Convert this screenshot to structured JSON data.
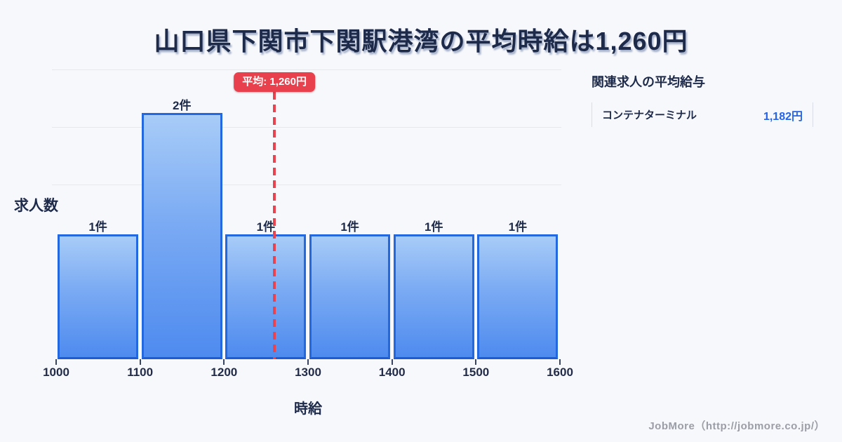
{
  "page": {
    "title": "山口県下関市下関駅港湾の平均時給は1,260円"
  },
  "chart_data": {
    "type": "bar",
    "title": "山口県下関市下関駅港湾の平均時給は1,260円",
    "xlabel": "時給",
    "ylabel": "求人数",
    "x_ticks": [
      "1000",
      "1100",
      "1200",
      "1300",
      "1400",
      "1500",
      "1600"
    ],
    "xlim": [
      1000,
      1600
    ],
    "ylim": [
      0,
      2.3
    ],
    "grid": true,
    "bins": [
      {
        "range": [
          1000,
          1100
        ],
        "count": 1,
        "label": "1件"
      },
      {
        "range": [
          1100,
          1200
        ],
        "count": 2,
        "label": "2件"
      },
      {
        "range": [
          1200,
          1300
        ],
        "count": 1,
        "label": "1件"
      },
      {
        "range": [
          1300,
          1400
        ],
        "count": 1,
        "label": "1件"
      },
      {
        "range": [
          1400,
          1500
        ],
        "count": 1,
        "label": "1件"
      },
      {
        "range": [
          1500,
          1600
        ],
        "count": 1,
        "label": "1件"
      }
    ],
    "average_line": {
      "value": 1260,
      "label": "平均: 1,260円"
    }
  },
  "panel": {
    "heading": "関連求人の平均給与",
    "items": [
      {
        "label": "コンテナターミナル",
        "value": "1,182円"
      }
    ]
  },
  "footer": {
    "credit": "JobMore（http://jobmore.co.jp/）"
  },
  "colors": {
    "background": "#f7f8fb",
    "title_text": "#1d2a4a",
    "bar_fill_top": "#a8ccf8",
    "bar_fill_bottom": "#4e8bef",
    "bar_border": "#2468df",
    "average_red": "#e8414d",
    "value_blue": "#2463ea",
    "gridline": "#e5e8f0",
    "row_border": "#d9dde8",
    "footer_gray": "#9b9ea6"
  }
}
